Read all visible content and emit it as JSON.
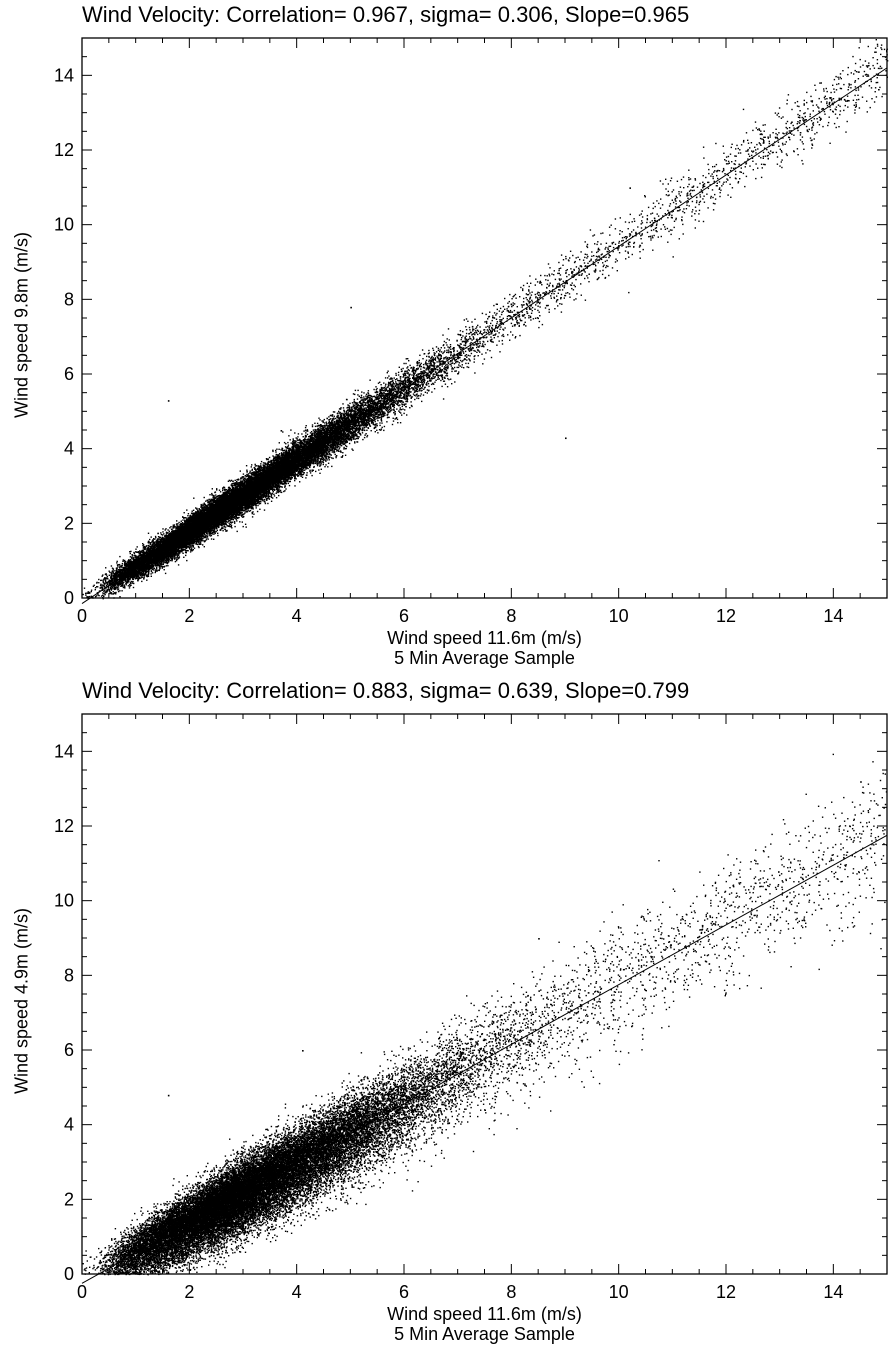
{
  "chart_data": [
    {
      "type": "scatter",
      "title": "Wind Velocity:  Correlation= 0.967, sigma= 0.306, Slope=0.965",
      "xlabel": "Wind speed 11.6m (m/s)",
      "xlabel_sub": "5 Min Average Sample",
      "ylabel": "Wind speed 9.8m (m/s)",
      "xlim": [
        0,
        15
      ],
      "ylim": [
        0,
        15
      ],
      "xticks": [
        "0",
        "2",
        "4",
        "6",
        "8",
        "10",
        "12",
        "14"
      ],
      "yticks": [
        "0",
        "2",
        "4",
        "6",
        "8",
        "10",
        "12",
        "14"
      ],
      "grid": false,
      "correlation": 0.967,
      "sigma": 0.306,
      "slope": 0.965,
      "fit_line": {
        "x": [
          0,
          15
        ],
        "y": [
          -0.15,
          14.2
        ]
      },
      "series": [
        {
          "marker": "dot",
          "color": "#000000",
          "x": [
            0.5,
            1.0,
            1.5,
            2.0,
            2.5,
            3.0,
            3.5,
            4.0,
            4.5,
            5.0,
            5.5,
            6.0,
            6.5,
            7.0,
            7.5,
            8.0,
            8.5,
            9.0,
            9.5,
            10.0,
            10.5,
            11.0,
            11.5,
            12.0,
            12.5,
            13.0,
            13.5,
            14.0,
            14.5
          ],
          "y": [
            0.4,
            0.85,
            1.3,
            1.8,
            2.3,
            2.75,
            3.25,
            3.75,
            4.2,
            4.7,
            5.15,
            5.65,
            6.1,
            6.6,
            7.05,
            7.55,
            8.05,
            8.5,
            9.0,
            9.5,
            9.95,
            10.45,
            10.9,
            11.4,
            11.85,
            12.35,
            12.85,
            13.3,
            13.85
          ]
        }
      ],
      "point_density": "very dense",
      "outliers": {
        "x": [
          1.6,
          9.0,
          10.2,
          5.0,
          3.7
        ],
        "y": [
          5.3,
          4.3,
          11.0,
          7.8,
          4.5
        ]
      }
    },
    {
      "type": "scatter",
      "title": "Wind Velocity:  Correlation= 0.883, sigma= 0.639, Slope=0.799",
      "xlabel": "Wind speed 11.6m (m/s)",
      "xlabel_sub": "5 Min Average Sample",
      "ylabel": "Wind speed 4.9m (m/s)",
      "xlim": [
        0,
        15
      ],
      "ylim": [
        0,
        15
      ],
      "xticks": [
        "0",
        "2",
        "4",
        "6",
        "8",
        "10",
        "12",
        "14"
      ],
      "yticks": [
        "0",
        "2",
        "4",
        "6",
        "8",
        "10",
        "12",
        "14"
      ],
      "grid": false,
      "correlation": 0.883,
      "sigma": 0.639,
      "slope": 0.799,
      "fit_line": {
        "x": [
          0,
          15
        ],
        "y": [
          -0.25,
          11.75
        ]
      },
      "series": [
        {
          "marker": "dot",
          "color": "#000000",
          "x": [
            0.5,
            1.0,
            1.5,
            2.0,
            2.5,
            3.0,
            3.5,
            4.0,
            4.5,
            5.0,
            5.5,
            6.0,
            6.5,
            7.0,
            7.5,
            8.0,
            8.5,
            9.0,
            9.5,
            10.0,
            10.5,
            11.0,
            11.5,
            12.0,
            12.5,
            13.0,
            13.5,
            14.0,
            14.5
          ],
          "y": [
            0.2,
            0.6,
            1.0,
            1.4,
            1.8,
            2.2,
            2.6,
            3.0,
            3.4,
            3.8,
            4.2,
            4.6,
            5.0,
            5.45,
            5.85,
            6.3,
            6.7,
            7.1,
            7.5,
            7.9,
            8.3,
            8.7,
            9.1,
            9.5,
            9.9,
            10.3,
            10.7,
            11.1,
            11.5
          ]
        }
      ],
      "point_density": "very dense",
      "outliers": {
        "x": [
          1.6,
          4.1,
          8.5,
          14.5
        ],
        "y": [
          4.8,
          6.0,
          9.0,
          13.2
        ]
      }
    }
  ]
}
